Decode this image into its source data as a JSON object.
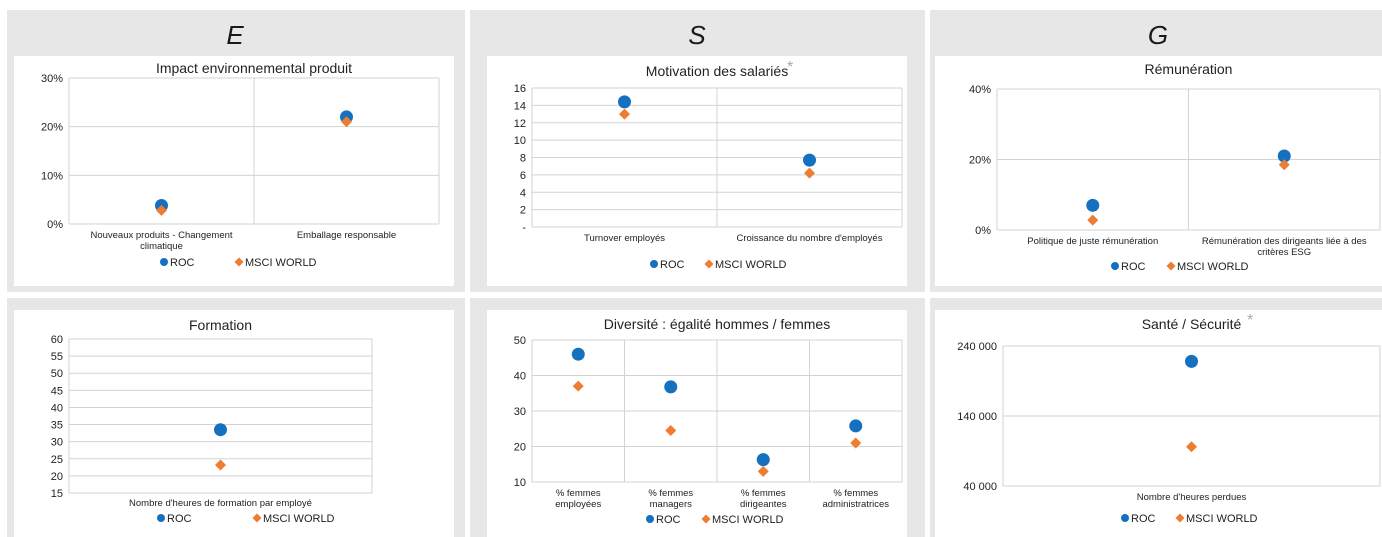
{
  "sections": [
    {
      "label": "E"
    },
    {
      "label": "S"
    },
    {
      "label": "G"
    }
  ],
  "colors": {
    "roc": "#1570c0",
    "msci": "#ed7d31",
    "grid": "#d3d3d3",
    "panel": "#e7e7e7"
  },
  "legend": {
    "roc": "ROC",
    "msci": "MSCI WORLD"
  },
  "chart_data": [
    {
      "type": "scatter",
      "title": "Impact environnemental produit",
      "categories": [
        "Nouveaux produits - Changement climatique",
        "Emballage responsable"
      ],
      "ticks": [
        "0%",
        "10%",
        "20%",
        "30%"
      ],
      "ylim": [
        0,
        30
      ],
      "series": [
        {
          "name": "ROC",
          "values": [
            3.8,
            22
          ]
        },
        {
          "name": "MSCI WORLD",
          "values": [
            2.8,
            21
          ]
        }
      ]
    },
    {
      "type": "scatter",
      "title": "Motivation des salariés",
      "annotation": "*",
      "categories": [
        "Turnover employés",
        "Croissance du nombre d'employés"
      ],
      "ticks": [
        "-",
        "2",
        "4",
        "6",
        "8",
        "10",
        "12",
        "14",
        "16"
      ],
      "ylim": [
        0,
        16
      ],
      "series": [
        {
          "name": "ROC",
          "values": [
            14.4,
            7.7
          ]
        },
        {
          "name": "MSCI WORLD",
          "values": [
            13.0,
            6.2
          ]
        }
      ]
    },
    {
      "type": "scatter",
      "title": "Rémunération",
      "categories": [
        "Politique de juste rémunération",
        "Rémunération des dirigeants liée à des critères ESG"
      ],
      "ticks": [
        "0%",
        "20%",
        "40%"
      ],
      "ylim": [
        0,
        40
      ],
      "series": [
        {
          "name": "ROC",
          "values": [
            7,
            21
          ]
        },
        {
          "name": "MSCI WORLD",
          "values": [
            2.8,
            18.5
          ]
        }
      ]
    },
    {
      "type": "scatter",
      "title": "Formation",
      "categories": [
        "Nombre d'heures de formation par employé"
      ],
      "ticks": [
        "15",
        "20",
        "25",
        "30",
        "35",
        "40",
        "45",
        "50",
        "55",
        "60"
      ],
      "ylim": [
        15,
        60
      ],
      "series": [
        {
          "name": "ROC",
          "values": [
            33.5
          ]
        },
        {
          "name": "MSCI WORLD",
          "values": [
            23.2
          ]
        }
      ]
    },
    {
      "type": "scatter",
      "title": "Diversité : égalité hommes / femmes",
      "categories": [
        "% femmes employées",
        "% femmes managers",
        "% femmes dirigeantes",
        "% femmes administratrices"
      ],
      "ticks": [
        "10",
        "20",
        "30",
        "40",
        "50"
      ],
      "ylim": [
        10,
        50
      ],
      "series": [
        {
          "name": "ROC",
          "values": [
            46,
            36.8,
            16.3,
            25.8
          ]
        },
        {
          "name": "MSCI WORLD",
          "values": [
            37,
            24.5,
            13,
            21
          ]
        }
      ]
    },
    {
      "type": "scatter",
      "title": "Santé / Sécurité",
      "annotation": "*",
      "categories": [
        "Nombre d'heures perdues"
      ],
      "ticks": [
        "40 000",
        "140 000",
        "240 000"
      ],
      "ylim": [
        40000,
        240000
      ],
      "series": [
        {
          "name": "ROC",
          "values": [
            218000
          ]
        },
        {
          "name": "MSCI WORLD",
          "values": [
            96000
          ]
        }
      ]
    }
  ]
}
